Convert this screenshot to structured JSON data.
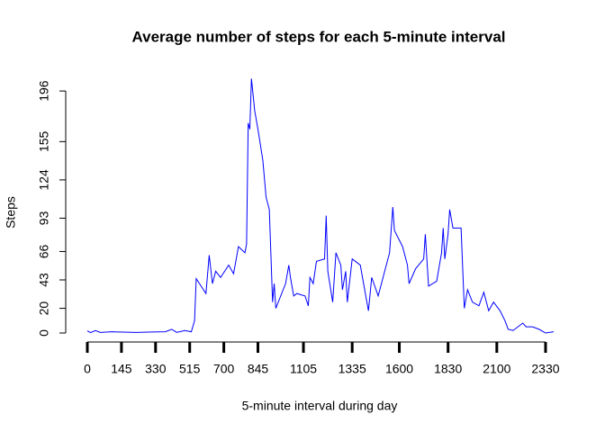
{
  "chart_data": {
    "type": "line",
    "title": "Average number of steps for each 5-minute interval",
    "x_label": "5-minute interval during day",
    "y_label": "Steps",
    "x": [
      0,
      2,
      5,
      8,
      15,
      30,
      40,
      48,
      52,
      55,
      60,
      64,
      66,
      67,
      73,
      75,
      77,
      79,
      82,
      87,
      90,
      93,
      97,
      98,
      99,
      100,
      101,
      103,
      105,
      108,
      110,
      112,
      114,
      115,
      116,
      122,
      124,
      125,
      127,
      129,
      134,
      136,
      137,
      139,
      141,
      146,
      147,
      148,
      151,
      153,
      156,
      157,
      159,
      160,
      163,
      168,
      170,
      173,
      175,
      179,
      183,
      186,
      188,
      189,
      194,
      197,
      198,
      202,
      207,
      208,
      210,
      215,
      218,
      219,
      220,
      222,
      223,
      225,
      230,
      232,
      234,
      237,
      241,
      244,
      247,
      250,
      254,
      257,
      259,
      262,
      268,
      270,
      274,
      278,
      282,
      287
    ],
    "series": [
      {
        "name": "Steps",
        "color": "#0000ff",
        "values": [
          1.7,
          0.3,
          2,
          0.5,
          1,
          0.5,
          0.8,
          1,
          3,
          0.5,
          2,
          1,
          10,
          44,
          32,
          63,
          40,
          50,
          45,
          55,
          48,
          70,
          65,
          72,
          170,
          165,
          206,
          180,
          165,
          140,
          110,
          100,
          25,
          40,
          20,
          40,
          55,
          45,
          30,
          32,
          30,
          22,
          45,
          40,
          58,
          60,
          95,
          50,
          25,
          65,
          55,
          35,
          50,
          25,
          60,
          55,
          40,
          18,
          45,
          30,
          50,
          65,
          102,
          83,
          70,
          55,
          40,
          52,
          60,
          80,
          38,
          42,
          65,
          85,
          60,
          80,
          100,
          85,
          85,
          20,
          35,
          25,
          22,
          33,
          18,
          25,
          18,
          10,
          3,
          2,
          8,
          5,
          5,
          3,
          0,
          1
        ]
      }
    ],
    "xlim": [
      0,
      287
    ],
    "xticks": [
      {
        "value": 0,
        "label": "0"
      },
      {
        "value": 21,
        "label": "145"
      },
      {
        "value": 42,
        "label": "330"
      },
      {
        "value": 63,
        "label": "515"
      },
      {
        "value": 84,
        "label": "700"
      },
      {
        "value": 105,
        "label": "845"
      },
      {
        "value": 133,
        "label": "1105"
      },
      {
        "value": 163,
        "label": "1335"
      },
      {
        "value": 192,
        "label": "1600"
      },
      {
        "value": 222,
        "label": "1830"
      },
      {
        "value": 252,
        "label": "2100"
      },
      {
        "value": 282,
        "label": "2330"
      }
    ],
    "ylim": [
      0,
      206
    ],
    "yticks": [
      0,
      20,
      43,
      66,
      93,
      124,
      155,
      196
    ]
  }
}
